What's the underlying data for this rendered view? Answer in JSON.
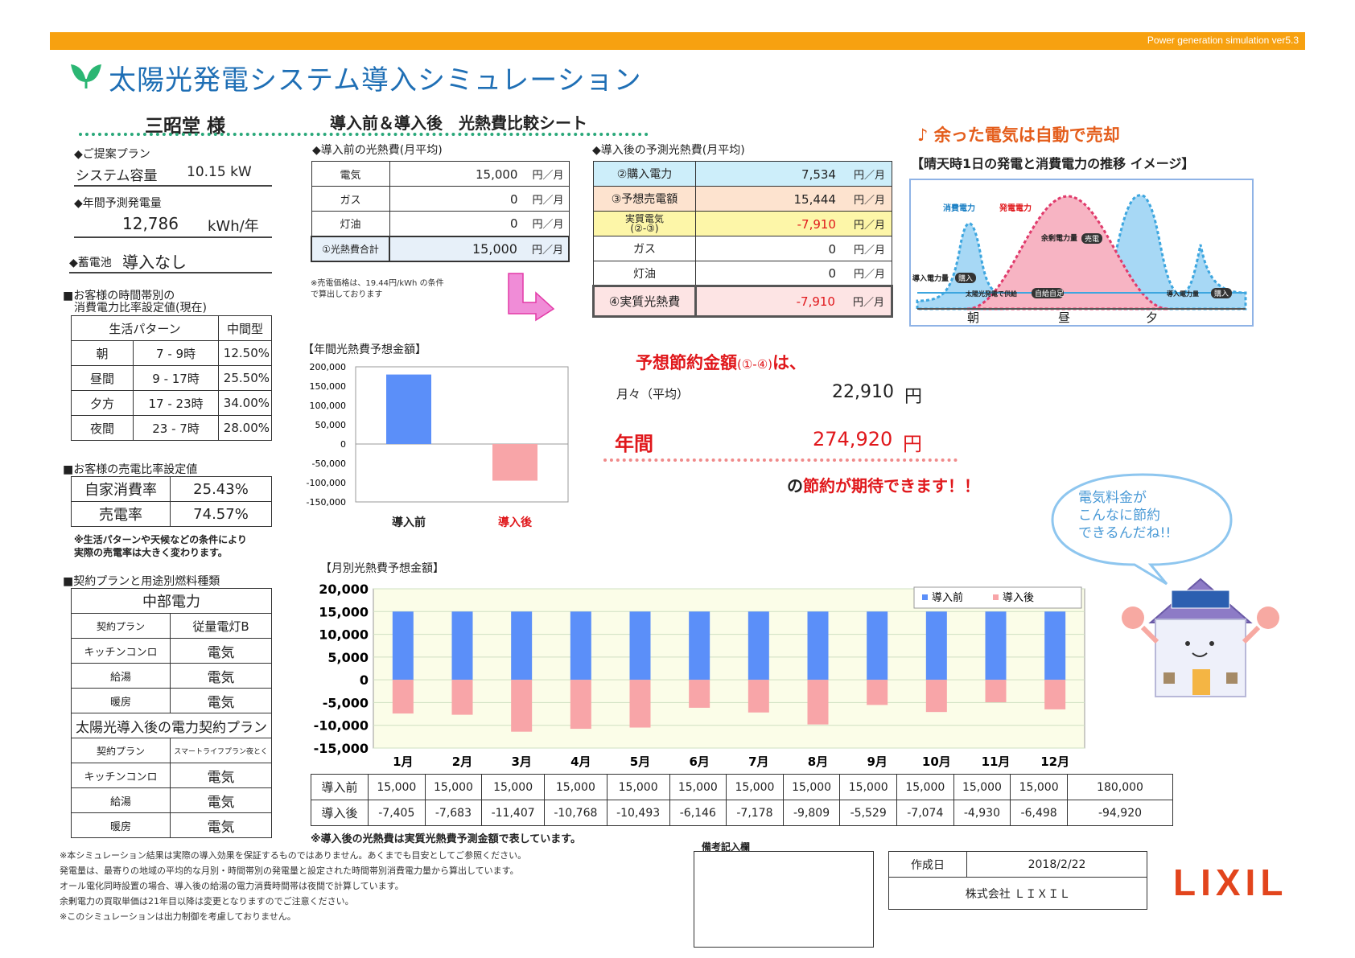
{
  "header": {
    "version": "Power generation simulation ver5.3",
    "title": "太陽光発電システム導入シミュレーション",
    "customer": "三昭堂 様",
    "sheet_title": "導入前＆導入後　光熱費比較シート"
  },
  "colors": {
    "accent": "#f7a110",
    "title": "#1f6fb5",
    "before": "#5b8ff9",
    "after": "#f8a5a8",
    "red": "#e0171b"
  },
  "plan": {
    "proposal_label": "◆ご提案プラン",
    "capacity_label": "システム容量",
    "capacity_value": "10.15 kW",
    "annual_label": "◆年間予測発電量",
    "annual_value": "12,786",
    "annual_unit": "kWh/年",
    "battery_label": "◆蓄電池",
    "battery_value": "導入なし"
  },
  "usage_ratio": {
    "title1": "■お客様の時間帯別の",
    "title2": "消費電力比率設定値(現在)",
    "pattern_label": "生活パターン",
    "pattern_value": "中間型",
    "rows": [
      {
        "name": "朝",
        "time": "7 - 9時",
        "pct": "12.50%"
      },
      {
        "name": "昼間",
        "time": "9 - 17時",
        "pct": "25.50%"
      },
      {
        "name": "夕方",
        "time": "17 - 23時",
        "pct": "34.00%"
      },
      {
        "name": "夜間",
        "time": "23 - 7時",
        "pct": "28.00%"
      }
    ]
  },
  "sell_ratio": {
    "title": "■お客様の売電比率設定値",
    "self_label": "自家消費率",
    "self_value": "25.43%",
    "sell_label": "売電率",
    "sell_value": "74.57%",
    "note1": "※生活パターンや天候などの条件により",
    "note2": "実際の売電率は大きく変わります。"
  },
  "contract": {
    "title": "■契約プランと用途別燃料種類",
    "company": "中部電力",
    "rows": [
      {
        "k": "契約プラン",
        "v": "従量電灯B"
      },
      {
        "k": "キッチンコンロ",
        "v": "電気"
      },
      {
        "k": "給湯",
        "v": "電気"
      },
      {
        "k": "暖房",
        "v": "電気"
      }
    ],
    "after_title": "太陽光導入後の電力契約プラン",
    "after_rows": [
      {
        "k": "契約プラン",
        "v": "スマートライフプラン夜とく"
      },
      {
        "k": "キッチンコンロ",
        "v": "電気"
      },
      {
        "k": "給湯",
        "v": "電気"
      },
      {
        "k": "暖房",
        "v": "電気"
      }
    ]
  },
  "before": {
    "title": "◆導入前の光熱費(月平均)",
    "unit": "円／月",
    "rows": [
      {
        "k": "電気",
        "v": "15,000"
      },
      {
        "k": "ガス",
        "v": "0"
      },
      {
        "k": "灯油",
        "v": "0"
      }
    ],
    "total_label": "①光熱費合計",
    "total_value": "15,000",
    "note": "※売電価格は、19.44円/kWh の条件で算出しております"
  },
  "after": {
    "title": "◆導入後の予測光熱費(月平均)",
    "unit": "円／月",
    "rows": [
      {
        "k": "②購入電力",
        "v": "7,534",
        "bg": "#cdeefa"
      },
      {
        "k": "③予想売電額",
        "v": "15,444",
        "bg": "#fde3cf"
      },
      {
        "k": "実質電気\n(②-③)",
        "v": "-7,910",
        "bg": "#fdf6a8",
        "red": true
      },
      {
        "k": "ガス",
        "v": "0",
        "bg": "#ffffff"
      },
      {
        "k": "灯油",
        "v": "0",
        "bg": "#ffffff"
      }
    ],
    "total_label": "④実質光熱費",
    "total_value": "-7,910"
  },
  "surplus": {
    "title": "♪ 余った電気は自動で売却",
    "subtitle": "【晴天時1日の発電と消費電力の推移 イメージ】",
    "labels": {
      "consumption": "消費電力",
      "generation": "発電電力",
      "surplus": "余剰電力量",
      "sell": "売電",
      "buy_left": "導入電力量",
      "buy": "購入",
      "solar_supply": "太陽光発電で供給",
      "self": "自給自足",
      "buy_right": "導入電力量",
      "buy2": "購入",
      "morning": "朝",
      "noon": "昼",
      "evening": "夕"
    }
  },
  "savings": {
    "title": "予想節約金額",
    "title_small": "(①-④)",
    "title_end": "は、",
    "monthly_label": "月々（平均）",
    "monthly_value": "22,910",
    "yen": "円",
    "annual_label": "年間",
    "annual_value": "274,920",
    "footer_pre": "の",
    "footer_main": "節約が期待できます！！"
  },
  "bubble": {
    "line1": "電気料金が",
    "line2": "こんなに節約",
    "line3": "できるんだね!!"
  },
  "annual_chart_title": "【年間光熱費予想金額】",
  "monthly_chart_title": "【月別光熱費予想金額】",
  "chart_data": [
    {
      "type": "bar",
      "title": "【年間光熱費予想金額】",
      "categories": [
        "導入前",
        "導入後"
      ],
      "values": [
        180000,
        -94920
      ],
      "ylim": [
        -150000,
        200000
      ],
      "ticks": [
        "200,000",
        "150,000",
        "100,000",
        "50,000",
        "0",
        "-50,000",
        "-100,000",
        "-150,000"
      ],
      "tick_values": [
        200000,
        150000,
        100000,
        50000,
        0,
        -50000,
        -100000,
        -150000
      ]
    },
    {
      "type": "bar",
      "title": "【月別光熱費予想金額】",
      "categories": [
        "1月",
        "2月",
        "3月",
        "4月",
        "5月",
        "6月",
        "7月",
        "8月",
        "9月",
        "10月",
        "11月",
        "12月"
      ],
      "series": [
        {
          "name": "導入前",
          "values": [
            15000,
            15000,
            15000,
            15000,
            15000,
            15000,
            15000,
            15000,
            15000,
            15000,
            15000,
            15000
          ]
        },
        {
          "name": "導入後",
          "values": [
            -7405,
            -7683,
            -11407,
            -10768,
            -10493,
            -6146,
            -7178,
            -9809,
            -5529,
            -7074,
            -4930,
            -6498
          ]
        }
      ],
      "ylim": [
        -15000,
        20000
      ],
      "ticks": [
        "20,000",
        "15,000",
        "10,000",
        "5,000",
        "0",
        "-5,000",
        "-10,000",
        "-15,000"
      ],
      "tick_values": [
        20000,
        15000,
        10000,
        5000,
        0,
        -5000,
        -10000,
        -15000
      ],
      "legend": "top-right"
    }
  ],
  "monthly_table": {
    "headers": [
      "1月",
      "2月",
      "3月",
      "4月",
      "5月",
      "6月",
      "7月",
      "8月",
      "9月",
      "10月",
      "11月",
      "12月",
      "年間"
    ],
    "before_label": "導入前",
    "after_label": "導入後",
    "before": [
      "15,000",
      "15,000",
      "15,000",
      "15,000",
      "15,000",
      "15,000",
      "15,000",
      "15,000",
      "15,000",
      "15,000",
      "15,000",
      "15,000",
      "180,000"
    ],
    "after": [
      "-7,405",
      "-7,683",
      "-11,407",
      "-10,768",
      "-10,493",
      "-6,146",
      "-7,178",
      "-9,809",
      "-5,529",
      "-7,074",
      "-4,930",
      "-6,498",
      "-94,920"
    ],
    "note": "※導入後の光熱費は実質光熱費予測金額で表しています。"
  },
  "footer": {
    "notes": [
      "※本シミュレーション結果は実際の導入効果を保証するものではありません。あくまでも目安としてご参照ください。",
      "発電量は、最寄りの地域の平均的な月別・時間帯別の発電量と設定された時間帯別消費電力量から算出しています。",
      "オール電化同時設置の場合、導入後の給湯の電力消費時間帯は夜間で計算しています。",
      "余剰電力の買取単価は21年目以降は変更となりますのでご注意ください。",
      "※このシミュレーションは出力制御を考慮しておりません。"
    ],
    "remarks_label": "備考記入欄",
    "created_label": "作成日",
    "created_value": "2018/2/22",
    "company": "株式会社 ＬＩＸＩＬ",
    "logo": "LIXIL"
  }
}
